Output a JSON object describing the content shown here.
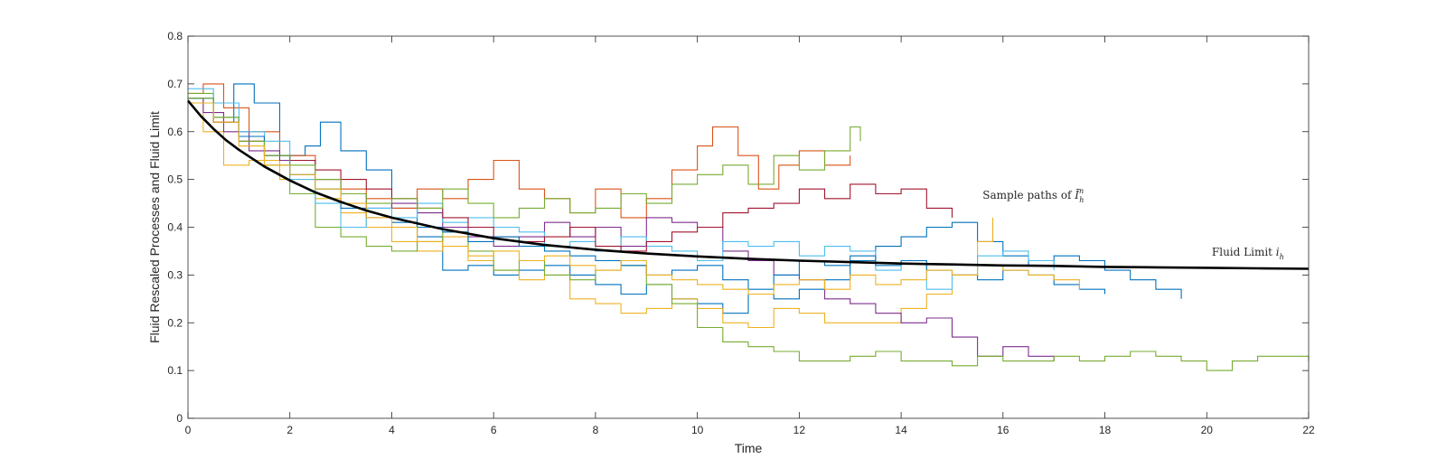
{
  "chart_data": {
    "type": "line",
    "title": "",
    "xlabel": "Time",
    "ylabel": "Fluid Rescaled Processes and Fluid Limit",
    "xlim": [
      0,
      22
    ],
    "ylim": [
      0,
      0.8
    ],
    "x_ticks": [
      "0",
      "2",
      "4",
      "6",
      "8",
      "10",
      "12",
      "14",
      "16",
      "18",
      "20",
      "22"
    ],
    "y_ticks": [
      "0",
      "0.1",
      "0.2",
      "0.3",
      "0.4",
      "0.5",
      "0.6",
      "0.7",
      "0.8"
    ],
    "grid": false,
    "box": true,
    "legend": "none",
    "annotations": [
      {
        "label_prefix": "Sample paths of ",
        "label_symbol": "Ī",
        "label_sup": "n",
        "label_sub": "h",
        "x": 15.6,
        "y": 0.46
      },
      {
        "label_prefix": "Fluid Limit ",
        "label_symbol": "i",
        "label_sup": "",
        "label_sub": "h",
        "x": 20.1,
        "y": 0.34
      }
    ],
    "fluid_limit": {
      "color": "#000000",
      "x": [
        0,
        0.25,
        0.5,
        0.75,
        1,
        1.5,
        2,
        2.5,
        3,
        3.5,
        4,
        5,
        6,
        7,
        8,
        9,
        10,
        11,
        12,
        13,
        14,
        15,
        16,
        17,
        18,
        19,
        20,
        21,
        22
      ],
      "y": [
        0.665,
        0.633,
        0.606,
        0.582,
        0.562,
        0.527,
        0.498,
        0.473,
        0.453,
        0.435,
        0.42,
        0.396,
        0.377,
        0.363,
        0.353,
        0.345,
        0.339,
        0.334,
        0.33,
        0.327,
        0.324,
        0.322,
        0.32,
        0.319,
        0.317,
        0.316,
        0.315,
        0.314,
        0.313
      ]
    },
    "series": [
      {
        "color": "#0072BD",
        "x": [
          0,
          0.5,
          0.9,
          1.3,
          1.8,
          2.3,
          2.6,
          3.0,
          3.5,
          4.0,
          4.5,
          5.0,
          5.5,
          6.0,
          6.5,
          7.0,
          7.5,
          8.0,
          8.5,
          9.0,
          9.5,
          10.0,
          10.5,
          11.0,
          11.5,
          12.0,
          12.5,
          13.0,
          13.5,
          14.0,
          14.5,
          15.0,
          15.5,
          16.0,
          16.5,
          17.0,
          17.5,
          18.0,
          18.5,
          19.0,
          19.5
        ],
        "y": [
          0.66,
          0.62,
          0.7,
          0.66,
          0.55,
          0.57,
          0.62,
          0.56,
          0.52,
          0.44,
          0.38,
          0.31,
          0.32,
          0.3,
          0.31,
          0.32,
          0.3,
          0.28,
          0.26,
          0.28,
          0.25,
          0.24,
          0.22,
          0.26,
          0.25,
          0.27,
          0.29,
          0.33,
          0.36,
          0.38,
          0.4,
          0.41,
          0.37,
          0.34,
          0.32,
          0.34,
          0.33,
          0.31,
          0.29,
          0.27,
          0.25
        ]
      },
      {
        "color": "#D95319",
        "x": [
          0,
          0.3,
          0.7,
          1.2,
          1.8,
          2.5,
          3.0,
          3.5,
          4.0,
          4.5,
          5.0,
          5.5,
          6.0,
          6.5,
          7.0,
          7.5,
          8.0,
          8.5,
          9.0,
          9.5,
          10.0,
          10.3,
          10.8,
          11.2,
          11.6,
          12.0,
          12.5,
          13.0
        ],
        "y": [
          0.68,
          0.7,
          0.65,
          0.6,
          0.55,
          0.5,
          0.48,
          0.46,
          0.44,
          0.48,
          0.46,
          0.5,
          0.54,
          0.48,
          0.46,
          0.43,
          0.48,
          0.42,
          0.46,
          0.52,
          0.57,
          0.61,
          0.55,
          0.48,
          0.53,
          0.56,
          0.53,
          0.55
        ]
      },
      {
        "color": "#EDB120",
        "x": [
          0,
          0.3,
          0.7,
          1.2,
          1.8,
          2.5,
          3.0,
          3.5,
          4.0,
          4.5,
          5.0,
          5.5,
          6.0,
          6.5,
          7.0,
          7.5,
          8.0,
          8.5,
          9.0,
          9.5,
          10.0,
          10.5,
          11.0,
          11.5,
          12.0,
          12.5,
          13.0,
          13.5,
          14.0,
          14.5,
          15.0,
          15.5,
          15.8
        ],
        "y": [
          0.67,
          0.6,
          0.53,
          0.54,
          0.5,
          0.46,
          0.43,
          0.4,
          0.37,
          0.35,
          0.38,
          0.33,
          0.31,
          0.29,
          0.3,
          0.25,
          0.24,
          0.22,
          0.23,
          0.25,
          0.23,
          0.2,
          0.19,
          0.23,
          0.22,
          0.2,
          0.2,
          0.2,
          0.23,
          0.26,
          0.3,
          0.37,
          0.42
        ]
      },
      {
        "color": "#7E2F8E",
        "x": [
          0,
          0.3,
          0.7,
          1.2,
          1.8,
          2.5,
          3.0,
          3.5,
          4.0,
          4.5,
          5.0,
          5.5,
          6.0,
          6.5,
          7.0,
          7.5,
          8.0,
          8.5,
          9.0,
          9.5,
          10.0,
          10.5,
          11.0,
          11.5,
          12.0,
          12.5,
          13.0,
          13.5,
          14.0,
          14.5,
          15.0,
          15.5,
          16.0,
          16.5,
          17.0
        ],
        "y": [
          0.67,
          0.64,
          0.6,
          0.56,
          0.54,
          0.5,
          0.47,
          0.44,
          0.45,
          0.43,
          0.4,
          0.38,
          0.36,
          0.38,
          0.41,
          0.38,
          0.4,
          0.36,
          0.42,
          0.41,
          0.4,
          0.35,
          0.33,
          0.3,
          0.29,
          0.25,
          0.24,
          0.22,
          0.2,
          0.21,
          0.17,
          0.13,
          0.15,
          0.13,
          0.12
        ]
      },
      {
        "color": "#77AC30",
        "x": [
          0,
          0.5,
          1.0,
          1.5,
          2.0,
          2.5,
          3.0,
          3.5,
          4.0,
          4.5,
          5.0,
          5.5,
          6.0,
          6.5,
          7.0,
          7.5,
          8.0,
          8.5,
          9.0,
          9.5,
          10.0,
          10.5,
          11.0,
          11.5,
          12.0,
          12.5,
          13.0,
          13.5,
          14.0,
          14.5,
          15.0,
          15.5,
          16.0,
          16.5,
          17.0,
          17.5,
          18.0,
          18.5,
          19.0,
          19.5,
          20.0,
          20.5,
          21.0,
          21.5,
          22.0
        ],
        "y": [
          0.68,
          0.63,
          0.59,
          0.53,
          0.47,
          0.4,
          0.38,
          0.36,
          0.35,
          0.37,
          0.39,
          0.35,
          0.31,
          0.33,
          0.3,
          0.29,
          0.31,
          0.32,
          0.28,
          0.24,
          0.19,
          0.16,
          0.15,
          0.14,
          0.12,
          0.12,
          0.13,
          0.14,
          0.12,
          0.12,
          0.11,
          0.13,
          0.12,
          0.12,
          0.13,
          0.12,
          0.13,
          0.14,
          0.13,
          0.12,
          0.1,
          0.12,
          0.13,
          0.13,
          0.12
        ]
      },
      {
        "color": "#4DBEEE",
        "x": [
          0,
          0.5,
          1.0,
          1.5,
          2.0,
          2.5,
          3.0,
          3.5,
          4.0,
          4.5,
          5.0,
          5.5,
          6.0,
          6.5,
          7.0,
          7.5,
          8.0,
          8.5,
          9.0,
          9.5,
          10.0,
          10.5,
          11.0,
          11.5,
          12.0,
          12.5,
          13.0,
          13.5,
          14.0,
          14.5,
          15.0,
          15.5,
          16.0,
          16.5,
          17.0
        ],
        "y": [
          0.69,
          0.66,
          0.6,
          0.58,
          0.5,
          0.45,
          0.4,
          0.44,
          0.42,
          0.45,
          0.41,
          0.42,
          0.4,
          0.39,
          0.36,
          0.37,
          0.35,
          0.38,
          0.36,
          0.35,
          0.33,
          0.37,
          0.36,
          0.37,
          0.34,
          0.36,
          0.35,
          0.31,
          0.33,
          0.27,
          0.3,
          0.34,
          0.35,
          0.33,
          0.31
        ]
      },
      {
        "color": "#A2142F",
        "x": [
          0,
          0.5,
          1.0,
          1.5,
          2.0,
          2.5,
          3.0,
          3.5,
          4.0,
          4.5,
          5.0,
          5.5,
          6.0,
          6.5,
          7.0,
          7.5,
          8.0,
          8.5,
          9.0,
          9.5,
          10.0,
          10.5,
          11.0,
          11.5,
          12.0,
          12.5,
          13.0,
          13.5,
          14.0,
          14.5,
          15.0
        ],
        "y": [
          0.66,
          0.62,
          0.58,
          0.55,
          0.54,
          0.52,
          0.5,
          0.48,
          0.46,
          0.44,
          0.42,
          0.4,
          0.38,
          0.37,
          0.38,
          0.4,
          0.36,
          0.35,
          0.37,
          0.39,
          0.4,
          0.43,
          0.44,
          0.45,
          0.48,
          0.46,
          0.49,
          0.47,
          0.48,
          0.44,
          0.42
        ]
      },
      {
        "color": "#0072BD",
        "x": [
          0,
          0.5,
          1.0,
          1.5,
          2.0,
          2.5,
          3.0,
          3.5,
          4.0,
          4.5,
          5.0,
          5.5,
          6.0,
          6.5,
          7.0,
          7.5,
          8.0,
          8.5,
          9.0,
          9.5,
          10.0,
          10.5,
          11.0,
          11.5,
          12.0,
          12.5,
          13.0,
          13.5,
          14.0,
          14.5,
          15.0,
          15.5,
          16.0,
          16.5,
          17.0,
          17.5,
          18.0
        ],
        "y": [
          0.67,
          0.63,
          0.59,
          0.55,
          0.51,
          0.48,
          0.44,
          0.42,
          0.41,
          0.4,
          0.39,
          0.37,
          0.38,
          0.36,
          0.35,
          0.34,
          0.33,
          0.32,
          0.3,
          0.31,
          0.32,
          0.29,
          0.27,
          0.3,
          0.33,
          0.32,
          0.34,
          0.32,
          0.33,
          0.31,
          0.3,
          0.29,
          0.31,
          0.3,
          0.28,
          0.27,
          0.26
        ]
      },
      {
        "color": "#77AC30",
        "x": [
          0,
          0.5,
          1.0,
          1.5,
          2.0,
          2.5,
          3.0,
          3.5,
          4.0,
          4.5,
          5.0,
          5.5,
          6.0,
          6.5,
          7.0,
          7.5,
          8.0,
          8.5,
          9.0,
          9.5,
          10.0,
          10.5,
          11.0,
          11.5,
          12.0,
          12.5,
          13.0,
          13.2
        ],
        "y": [
          0.67,
          0.63,
          0.58,
          0.55,
          0.53,
          0.5,
          0.47,
          0.45,
          0.46,
          0.44,
          0.48,
          0.45,
          0.42,
          0.44,
          0.46,
          0.43,
          0.44,
          0.47,
          0.45,
          0.49,
          0.51,
          0.53,
          0.49,
          0.55,
          0.52,
          0.56,
          0.61,
          0.58
        ]
      },
      {
        "color": "#EDB120",
        "x": [
          0,
          0.5,
          1.0,
          1.5,
          2.0,
          2.5,
          3.0,
          3.5,
          4.0,
          4.5,
          5.0,
          5.5,
          6.0,
          6.5,
          7.0,
          7.5,
          8.0,
          8.5,
          9.0,
          9.5,
          10.0,
          10.5,
          11.0,
          11.5,
          12.0,
          12.5,
          13.0,
          13.5,
          14.0,
          14.5,
          15.0,
          15.5,
          16.0,
          16.5,
          17.0,
          17.5
        ],
        "y": [
          0.66,
          0.62,
          0.57,
          0.53,
          0.51,
          0.48,
          0.45,
          0.42,
          0.4,
          0.37,
          0.36,
          0.34,
          0.35,
          0.33,
          0.34,
          0.32,
          0.31,
          0.33,
          0.3,
          0.29,
          0.28,
          0.27,
          0.26,
          0.28,
          0.29,
          0.27,
          0.3,
          0.28,
          0.29,
          0.31,
          0.3,
          0.32,
          0.31,
          0.3,
          0.29,
          0.27
        ]
      }
    ]
  }
}
